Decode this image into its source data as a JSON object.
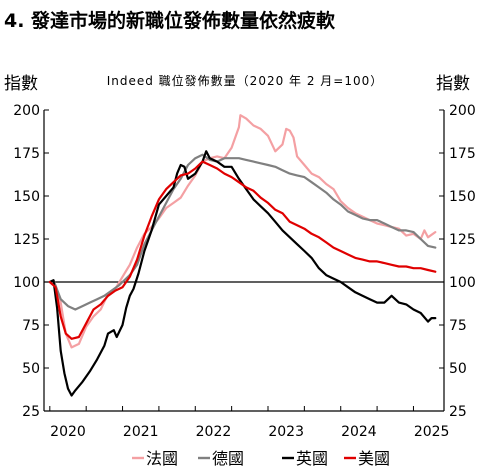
{
  "header": {
    "title": "4. 發達市場的新職位發佈數量依然疲軟"
  },
  "chart_data": {
    "type": "line",
    "title": "Indeed 職位發佈數量（2020 年 2 月=100）",
    "ylabel_left": "指數",
    "ylabel_right": "指數",
    "ylim": [
      25,
      200
    ],
    "yticks": [
      25,
      50,
      75,
      100,
      125,
      150,
      175,
      200
    ],
    "xlim": [
      2019.92,
      2025.42
    ],
    "xticks": [
      2020,
      2021,
      2022,
      2023,
      2024,
      2025
    ],
    "reference_line": 100,
    "grid": false,
    "legend_position": "bottom",
    "series": [
      {
        "name": "法國",
        "color": "#f4a0a3",
        "points": [
          [
            2020.0,
            100
          ],
          [
            2020.08,
            98
          ],
          [
            2020.15,
            88
          ],
          [
            2020.22,
            70
          ],
          [
            2020.3,
            62
          ],
          [
            2020.4,
            64
          ],
          [
            2020.5,
            74
          ],
          [
            2020.6,
            80
          ],
          [
            2020.7,
            84
          ],
          [
            2020.8,
            93
          ],
          [
            2020.9,
            96
          ],
          [
            2021.0,
            103
          ],
          [
            2021.1,
            110
          ],
          [
            2021.2,
            120
          ],
          [
            2021.3,
            128
          ],
          [
            2021.4,
            132
          ],
          [
            2021.5,
            137
          ],
          [
            2021.6,
            143
          ],
          [
            2021.7,
            146
          ],
          [
            2021.8,
            149
          ],
          [
            2021.9,
            156
          ],
          [
            2022.0,
            162
          ],
          [
            2022.1,
            170
          ],
          [
            2022.2,
            172
          ],
          [
            2022.3,
            173
          ],
          [
            2022.4,
            172
          ],
          [
            2022.5,
            178
          ],
          [
            2022.6,
            190
          ],
          [
            2022.62,
            197
          ],
          [
            2022.7,
            195
          ],
          [
            2022.8,
            191
          ],
          [
            2022.9,
            189
          ],
          [
            2023.0,
            185
          ],
          [
            2023.1,
            176
          ],
          [
            2023.2,
            180
          ],
          [
            2023.25,
            189
          ],
          [
            2023.3,
            188
          ],
          [
            2023.35,
            184
          ],
          [
            2023.4,
            173
          ],
          [
            2023.5,
            168
          ],
          [
            2023.6,
            163
          ],
          [
            2023.7,
            161
          ],
          [
            2023.8,
            157
          ],
          [
            2023.9,
            154
          ],
          [
            2024.0,
            147
          ],
          [
            2024.1,
            143
          ],
          [
            2024.2,
            140
          ],
          [
            2024.3,
            138
          ],
          [
            2024.4,
            136
          ],
          [
            2024.5,
            134
          ],
          [
            2024.6,
            133
          ],
          [
            2024.7,
            132
          ],
          [
            2024.8,
            131
          ],
          [
            2024.9,
            127
          ],
          [
            2025.0,
            128
          ],
          [
            2025.1,
            125
          ],
          [
            2025.15,
            130
          ],
          [
            2025.2,
            126
          ],
          [
            2025.3,
            129
          ]
        ]
      },
      {
        "name": "德國",
        "color": "#808080",
        "points": [
          [
            2020.0,
            100
          ],
          [
            2020.05,
            101
          ],
          [
            2020.15,
            90
          ],
          [
            2020.25,
            86
          ],
          [
            2020.35,
            84
          ],
          [
            2020.45,
            86
          ],
          [
            2020.55,
            88
          ],
          [
            2020.65,
            90
          ],
          [
            2020.75,
            92
          ],
          [
            2020.85,
            95
          ],
          [
            2020.95,
            98
          ],
          [
            2021.0,
            100
          ],
          [
            2021.1,
            104
          ],
          [
            2021.2,
            110
          ],
          [
            2021.3,
            122
          ],
          [
            2021.4,
            130
          ],
          [
            2021.5,
            138
          ],
          [
            2021.6,
            146
          ],
          [
            2021.7,
            154
          ],
          [
            2021.8,
            160
          ],
          [
            2021.9,
            168
          ],
          [
            2022.0,
            172
          ],
          [
            2022.1,
            174
          ],
          [
            2022.2,
            171
          ],
          [
            2022.3,
            170
          ],
          [
            2022.4,
            172
          ],
          [
            2022.5,
            172
          ],
          [
            2022.6,
            172
          ],
          [
            2022.7,
            171
          ],
          [
            2022.8,
            170
          ],
          [
            2022.9,
            169
          ],
          [
            2023.0,
            168
          ],
          [
            2023.1,
            167
          ],
          [
            2023.2,
            165
          ],
          [
            2023.3,
            163
          ],
          [
            2023.4,
            162
          ],
          [
            2023.5,
            161
          ],
          [
            2023.6,
            158
          ],
          [
            2023.7,
            155
          ],
          [
            2023.8,
            152
          ],
          [
            2023.9,
            148
          ],
          [
            2024.0,
            145
          ],
          [
            2024.1,
            141
          ],
          [
            2024.2,
            139
          ],
          [
            2024.3,
            137
          ],
          [
            2024.4,
            136
          ],
          [
            2024.5,
            136
          ],
          [
            2024.6,
            134
          ],
          [
            2024.7,
            132
          ],
          [
            2024.8,
            130
          ],
          [
            2024.9,
            130
          ],
          [
            2025.0,
            129
          ],
          [
            2025.1,
            125
          ],
          [
            2025.2,
            121
          ],
          [
            2025.3,
            120
          ]
        ]
      },
      {
        "name": "英國",
        "color": "#000000",
        "points": [
          [
            2020.0,
            100
          ],
          [
            2020.05,
            101
          ],
          [
            2020.1,
            85
          ],
          [
            2020.15,
            60
          ],
          [
            2020.2,
            47
          ],
          [
            2020.25,
            38
          ],
          [
            2020.3,
            34
          ],
          [
            2020.35,
            37
          ],
          [
            2020.45,
            42
          ],
          [
            2020.55,
            48
          ],
          [
            2020.65,
            55
          ],
          [
            2020.75,
            63
          ],
          [
            2020.8,
            70
          ],
          [
            2020.88,
            72
          ],
          [
            2020.92,
            68
          ],
          [
            2021.0,
            75
          ],
          [
            2021.05,
            85
          ],
          [
            2021.1,
            92
          ],
          [
            2021.15,
            96
          ],
          [
            2021.22,
            105
          ],
          [
            2021.3,
            118
          ],
          [
            2021.4,
            130
          ],
          [
            2021.5,
            145
          ],
          [
            2021.6,
            150
          ],
          [
            2021.7,
            155
          ],
          [
            2021.75,
            163
          ],
          [
            2021.8,
            168
          ],
          [
            2021.85,
            167
          ],
          [
            2021.9,
            160
          ],
          [
            2022.0,
            163
          ],
          [
            2022.1,
            170
          ],
          [
            2022.15,
            176
          ],
          [
            2022.2,
            172
          ],
          [
            2022.3,
            170
          ],
          [
            2022.4,
            167
          ],
          [
            2022.5,
            167
          ],
          [
            2022.6,
            160
          ],
          [
            2022.7,
            154
          ],
          [
            2022.8,
            148
          ],
          [
            2022.9,
            144
          ],
          [
            2023.0,
            140
          ],
          [
            2023.1,
            135
          ],
          [
            2023.2,
            130
          ],
          [
            2023.3,
            126
          ],
          [
            2023.4,
            122
          ],
          [
            2023.5,
            118
          ],
          [
            2023.6,
            114
          ],
          [
            2023.7,
            108
          ],
          [
            2023.8,
            104
          ],
          [
            2023.9,
            102
          ],
          [
            2024.0,
            100
          ],
          [
            2024.1,
            97
          ],
          [
            2024.2,
            94
          ],
          [
            2024.3,
            92
          ],
          [
            2024.4,
            90
          ],
          [
            2024.5,
            88
          ],
          [
            2024.6,
            88
          ],
          [
            2024.7,
            92
          ],
          [
            2024.8,
            88
          ],
          [
            2024.9,
            87
          ],
          [
            2025.0,
            84
          ],
          [
            2025.1,
            82
          ],
          [
            2025.2,
            77
          ],
          [
            2025.25,
            79
          ],
          [
            2025.3,
            79
          ]
        ]
      },
      {
        "name": "美國",
        "color": "#e00000",
        "points": [
          [
            2020.0,
            100
          ],
          [
            2020.08,
            97
          ],
          [
            2020.15,
            80
          ],
          [
            2020.22,
            70
          ],
          [
            2020.3,
            67
          ],
          [
            2020.4,
            68
          ],
          [
            2020.5,
            76
          ],
          [
            2020.6,
            84
          ],
          [
            2020.7,
            87
          ],
          [
            2020.8,
            92
          ],
          [
            2020.9,
            95
          ],
          [
            2021.0,
            97
          ],
          [
            2021.1,
            103
          ],
          [
            2021.2,
            113
          ],
          [
            2021.3,
            127
          ],
          [
            2021.4,
            138
          ],
          [
            2021.5,
            148
          ],
          [
            2021.6,
            154
          ],
          [
            2021.7,
            158
          ],
          [
            2021.8,
            162
          ],
          [
            2021.9,
            163
          ],
          [
            2022.0,
            166
          ],
          [
            2022.1,
            170
          ],
          [
            2022.2,
            168
          ],
          [
            2022.3,
            166
          ],
          [
            2022.4,
            163
          ],
          [
            2022.5,
            161
          ],
          [
            2022.6,
            158
          ],
          [
            2022.7,
            155
          ],
          [
            2022.8,
            153
          ],
          [
            2022.9,
            149
          ],
          [
            2023.0,
            146
          ],
          [
            2023.1,
            142
          ],
          [
            2023.2,
            140
          ],
          [
            2023.3,
            135
          ],
          [
            2023.4,
            133
          ],
          [
            2023.5,
            131
          ],
          [
            2023.6,
            128
          ],
          [
            2023.7,
            126
          ],
          [
            2023.8,
            123
          ],
          [
            2023.9,
            120
          ],
          [
            2024.0,
            118
          ],
          [
            2024.1,
            116
          ],
          [
            2024.2,
            114
          ],
          [
            2024.3,
            113
          ],
          [
            2024.4,
            112
          ],
          [
            2024.5,
            112
          ],
          [
            2024.6,
            111
          ],
          [
            2024.7,
            110
          ],
          [
            2024.8,
            109
          ],
          [
            2024.9,
            109
          ],
          [
            2025.0,
            108
          ],
          [
            2025.1,
            108
          ],
          [
            2025.2,
            107
          ],
          [
            2025.3,
            106
          ]
        ]
      }
    ]
  }
}
